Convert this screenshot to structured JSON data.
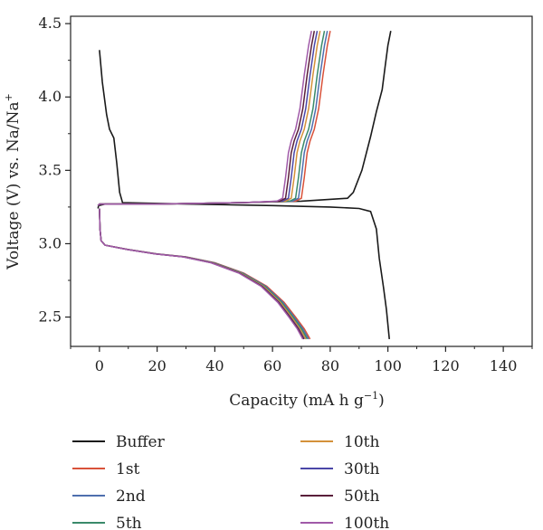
{
  "chart_data": {
    "type": "line",
    "xlabel_main": "Capacity (mA h g",
    "xlabel_sup": "−1",
    "xlabel_end": ")",
    "ylabel_main": "Voltage (V) vs. Na/Na",
    "ylabel_sup": "+",
    "xlim": [
      -10,
      150
    ],
    "ylim": [
      2.3,
      4.55
    ],
    "xticks": [
      0,
      20,
      40,
      60,
      80,
      100,
      120,
      140
    ],
    "xtick_labels": [
      "0",
      "20",
      "40",
      "60",
      "80",
      "100",
      "120",
      "140"
    ],
    "yticks": [
      2.5,
      3.0,
      3.5,
      4.0,
      4.5
    ],
    "ytick_labels": [
      "2.5",
      "3.0",
      "3.5",
      "4.0",
      "4.5"
    ],
    "grid": false,
    "legend_position": "bottom",
    "series": [
      {
        "name": "Buffer",
        "color": "#1a1a1a",
        "charge": [
          [
            -0.5,
            3.24
          ],
          [
            -0.3,
            3.26
          ],
          [
            2,
            3.27
          ],
          [
            20,
            3.27
          ],
          [
            50,
            3.28
          ],
          [
            70,
            3.29
          ],
          [
            86,
            3.31
          ],
          [
            88,
            3.35
          ],
          [
            91,
            3.5
          ],
          [
            94,
            3.73
          ],
          [
            96,
            3.9
          ],
          [
            98,
            4.05
          ],
          [
            99,
            4.2
          ],
          [
            100,
            4.35
          ],
          [
            101,
            4.45
          ]
        ],
        "discharge_head": [
          [
            0,
            4.32
          ],
          [
            1,
            4.1
          ],
          [
            2.5,
            3.88
          ],
          [
            3.5,
            3.78
          ],
          [
            5,
            3.72
          ],
          [
            6,
            3.55
          ],
          [
            7,
            3.35
          ],
          [
            8,
            3.28
          ],
          [
            30,
            3.27
          ],
          [
            60,
            3.26
          ],
          [
            80,
            3.25
          ],
          [
            90,
            3.24
          ],
          [
            94,
            3.22
          ],
          [
            96,
            3.1
          ],
          [
            97,
            2.9
          ],
          [
            98.5,
            2.7
          ],
          [
            99.5,
            2.55
          ],
          [
            100.5,
            2.35
          ]
        ]
      },
      {
        "name": "1st",
        "color": "#d9523a",
        "cap_end": 73.0,
        "charge_end": 80.0
      },
      {
        "name": "2nd",
        "color": "#4e6fae",
        "cap_end": 72.5,
        "charge_end": 79.0
      },
      {
        "name": "5th",
        "color": "#3a8a6a",
        "cap_end": 72.0,
        "charge_end": 78.0
      },
      {
        "name": "10th",
        "color": "#d4913a",
        "cap_end": 71.5,
        "charge_end": 76.5
      },
      {
        "name": "30th",
        "color": "#4a47a8",
        "cap_end": 71.0,
        "charge_end": 75.5
      },
      {
        "name": "50th",
        "color": "#5a1f3a",
        "cap_end": 70.8,
        "charge_end": 74.5
      },
      {
        "name": "100th",
        "color": "#a05aa8",
        "cap_end": 70.5,
        "charge_end": 73.5
      }
    ]
  }
}
